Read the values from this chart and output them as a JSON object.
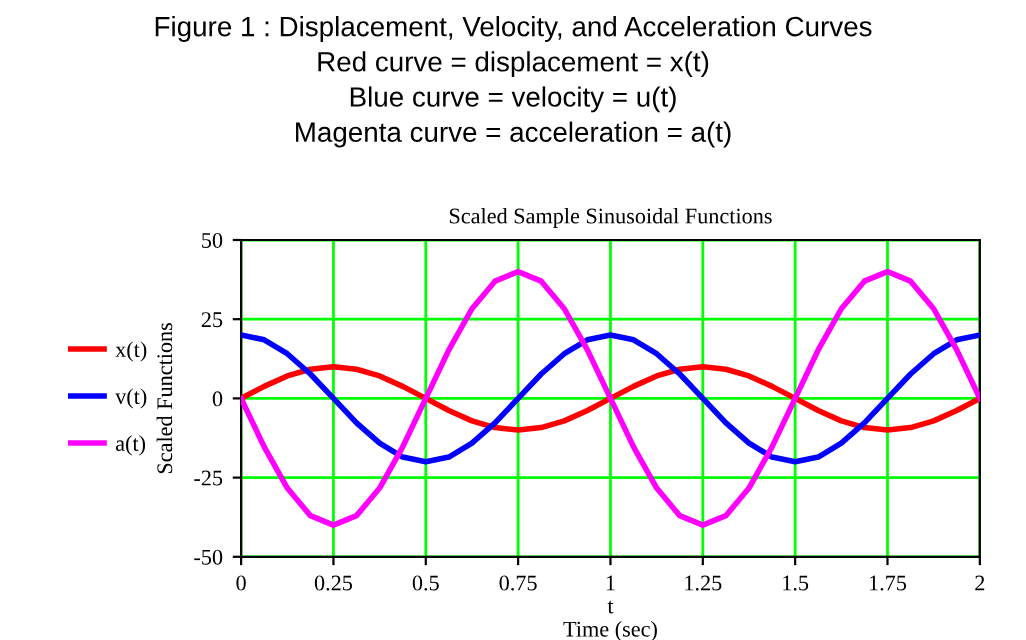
{
  "chart_data": {
    "type": "line",
    "title": "Figure 1 : Displacement, Velocity, and Acceleration Curves",
    "annotations": [
      "Red curve = displacement = x(t)",
      "Blue curve = velocity = u(t)",
      "Magenta curve = acceleration = a(t)"
    ],
    "subtitle": "Scaled Sample Sinusoidal Functions",
    "xlabel": "t\nTime (sec)",
    "ylabel": "Scaled Functions",
    "x": [
      0,
      0.0625,
      0.125,
      0.1875,
      0.25,
      0.3125,
      0.375,
      0.4375,
      0.5,
      0.5625,
      0.625,
      0.6875,
      0.75,
      0.8125,
      0.875,
      0.9375,
      1,
      1.0625,
      1.125,
      1.1875,
      1.25,
      1.3125,
      1.375,
      1.4375,
      1.5,
      1.5625,
      1.625,
      1.6875,
      1.75,
      1.8125,
      1.875,
      1.9375,
      2
    ],
    "series": [
      {
        "name": "x(t)",
        "color": "#ff0000",
        "values": [
          0,
          3.8,
          7.1,
          9.2,
          10,
          9.2,
          7.1,
          3.8,
          0,
          -3.8,
          -7.1,
          -9.2,
          -10,
          -9.2,
          -7.1,
          -3.8,
          0,
          3.8,
          7.1,
          9.2,
          10,
          9.2,
          7.1,
          3.8,
          0,
          -3.8,
          -7.1,
          -9.2,
          -10,
          -9.2,
          -7.1,
          -3.8,
          0
        ]
      },
      {
        "name": "v(t)",
        "color": "#0000ff",
        "values": [
          20,
          18.5,
          14.1,
          7.7,
          0,
          -7.7,
          -14.1,
          -18.5,
          -20,
          -18.5,
          -14.1,
          -7.7,
          0,
          7.7,
          14.1,
          18.5,
          20,
          18.5,
          14.1,
          7.7,
          0,
          -7.7,
          -14.1,
          -18.5,
          -20,
          -18.5,
          -14.1,
          -7.7,
          0,
          7.7,
          14.1,
          18.5,
          20
        ]
      },
      {
        "name": "a(t)",
        "color": "#ff00ff",
        "values": [
          0,
          -15.3,
          -28.3,
          -37,
          -40,
          -37,
          -28.3,
          -15.3,
          0,
          15.3,
          28.3,
          37,
          40,
          37,
          28.3,
          15.3,
          0,
          -15.3,
          -28.3,
          -37,
          -40,
          -37,
          -28.3,
          -15.3,
          0,
          15.3,
          28.3,
          37,
          40,
          37,
          28.3,
          15.3,
          0
        ]
      }
    ],
    "xlim": [
      0,
      2
    ],
    "xticks": [
      0,
      0.25,
      0.5,
      0.75,
      1,
      1.25,
      1.5,
      1.75,
      2
    ],
    "ylim": [
      -50,
      50
    ],
    "yticks": [
      50,
      25,
      0,
      -25,
      -50
    ],
    "grid": true,
    "legend": "left",
    "marker": "none",
    "line_style": "solid"
  }
}
